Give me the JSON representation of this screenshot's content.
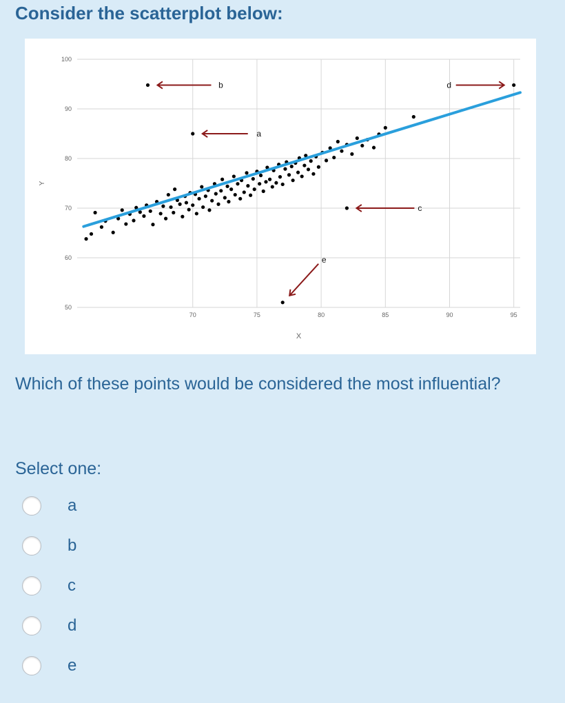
{
  "page": {
    "title": "Consider the scatterplot below:",
    "question": "Which of these points would be considered the most influential?",
    "select_label": "Select one:",
    "options": [
      {
        "label": "a"
      },
      {
        "label": "b"
      },
      {
        "label": "c"
      },
      {
        "label": "d"
      },
      {
        "label": "e"
      }
    ]
  },
  "chart_data": {
    "type": "scatter",
    "xlabel": "X",
    "ylabel": "Y",
    "xlim": [
      61,
      95.5
    ],
    "ylim": [
      50,
      100
    ],
    "x_ticks": [
      70,
      75,
      80,
      85,
      90,
      95
    ],
    "y_ticks": [
      50,
      60,
      70,
      80,
      90,
      100
    ],
    "grid": true,
    "regression_line": {
      "x": [
        61.5,
        95.5
      ],
      "y": [
        66.3,
        93.3
      ],
      "color": "#2a9fdc"
    },
    "annotations": [
      {
        "label": "a",
        "x": 70,
        "y": 85
      },
      {
        "label": "b",
        "x": 66.5,
        "y": 94.8
      },
      {
        "label": "c",
        "x": 82,
        "y": 70
      },
      {
        "label": "d",
        "x": 95,
        "y": 94.8
      },
      {
        "label": "e",
        "x": 77,
        "y": 51
      }
    ],
    "points": [
      [
        61.7,
        63.8
      ],
      [
        62.1,
        64.8
      ],
      [
        62.4,
        69.1
      ],
      [
        62.9,
        66.2
      ],
      [
        63.2,
        67.4
      ],
      [
        63.8,
        65.1
      ],
      [
        64.2,
        67.9
      ],
      [
        64.5,
        69.6
      ],
      [
        64.8,
        66.8
      ],
      [
        65.1,
        68.8
      ],
      [
        65.4,
        67.5
      ],
      [
        65.6,
        70.1
      ],
      [
        65.9,
        69.2
      ],
      [
        66.2,
        68.4
      ],
      [
        66.4,
        70.6
      ],
      [
        66.7,
        69.4
      ],
      [
        66.9,
        66.7
      ],
      [
        67.2,
        71.3
      ],
      [
        67.5,
        68.9
      ],
      [
        67.7,
        70.4
      ],
      [
        67.9,
        67.9
      ],
      [
        68.1,
        72.7
      ],
      [
        68.3,
        70.2
      ],
      [
        68.5,
        69.1
      ],
      [
        68.6,
        73.8
      ],
      [
        68.8,
        71.6
      ],
      [
        69.0,
        70.8
      ],
      [
        69.2,
        68.3
      ],
      [
        69.4,
        72.4
      ],
      [
        69.5,
        71.1
      ],
      [
        69.7,
        69.7
      ],
      [
        69.8,
        73.1
      ],
      [
        70.0,
        70.6
      ],
      [
        70.2,
        72.8
      ],
      [
        70.3,
        68.9
      ],
      [
        70.5,
        71.9
      ],
      [
        70.7,
        74.3
      ],
      [
        70.8,
        70.2
      ],
      [
        71.0,
        72.4
      ],
      [
        71.2,
        73.6
      ],
      [
        71.3,
        69.6
      ],
      [
        71.5,
        71.5
      ],
      [
        71.7,
        74.9
      ],
      [
        71.8,
        72.9
      ],
      [
        72.0,
        70.8
      ],
      [
        72.2,
        73.5
      ],
      [
        72.3,
        75.8
      ],
      [
        72.5,
        72.1
      ],
      [
        72.7,
        74.4
      ],
      [
        72.8,
        71.3
      ],
      [
        73.0,
        73.8
      ],
      [
        73.2,
        76.4
      ],
      [
        73.3,
        72.7
      ],
      [
        73.5,
        74.9
      ],
      [
        73.7,
        71.9
      ],
      [
        73.8,
        75.6
      ],
      [
        74.0,
        73.2
      ],
      [
        74.2,
        77.1
      ],
      [
        74.3,
        74.5
      ],
      [
        74.5,
        72.6
      ],
      [
        74.7,
        75.9
      ],
      [
        74.8,
        73.8
      ],
      [
        75.0,
        77.4
      ],
      [
        75.2,
        74.9
      ],
      [
        75.3,
        76.6
      ],
      [
        75.5,
        73.4
      ],
      [
        75.7,
        75.3
      ],
      [
        75.8,
        78.2
      ],
      [
        76.0,
        75.8
      ],
      [
        76.2,
        74.3
      ],
      [
        76.3,
        77.6
      ],
      [
        76.5,
        75.1
      ],
      [
        76.7,
        78.8
      ],
      [
        76.8,
        76.3
      ],
      [
        77.0,
        74.8
      ],
      [
        77.2,
        77.9
      ],
      [
        77.3,
        79.3
      ],
      [
        77.5,
        76.7
      ],
      [
        77.7,
        78.4
      ],
      [
        77.8,
        75.6
      ],
      [
        78.0,
        79.1
      ],
      [
        78.2,
        77.2
      ],
      [
        78.3,
        80.1
      ],
      [
        78.5,
        76.4
      ],
      [
        78.7,
        78.6
      ],
      [
        78.8,
        80.6
      ],
      [
        79.0,
        77.8
      ],
      [
        79.2,
        79.5
      ],
      [
        79.4,
        76.9
      ],
      [
        79.6,
        80.4
      ],
      [
        79.8,
        78.3
      ],
      [
        80.1,
        81.2
      ],
      [
        80.4,
        79.6
      ],
      [
        80.7,
        82.1
      ],
      [
        81.0,
        80.2
      ],
      [
        81.3,
        83.4
      ],
      [
        81.6,
        81.5
      ],
      [
        82.0,
        82.8
      ],
      [
        82.4,
        80.9
      ],
      [
        82.8,
        84.1
      ],
      [
        83.2,
        82.6
      ],
      [
        83.6,
        83.8
      ],
      [
        84.1,
        82.2
      ],
      [
        84.5,
        84.9
      ],
      [
        85.0,
        86.2
      ],
      [
        87.2,
        88.4
      ],
      [
        66.5,
        94.8
      ],
      [
        70.0,
        85.0
      ],
      [
        82.0,
        70.0
      ],
      [
        95.0,
        94.8
      ],
      [
        77.0,
        51.0
      ]
    ]
  }
}
